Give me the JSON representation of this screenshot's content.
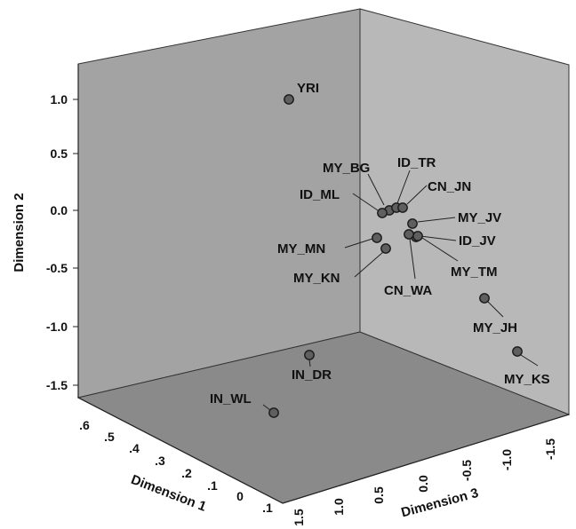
{
  "chart_data": {
    "type": "scatter",
    "title": "",
    "axes": {
      "dimension1": {
        "label": "Dimension 1",
        "ticks": [
          ".6",
          ".5",
          ".4",
          ".3",
          ".2",
          ".1",
          "0",
          ".1"
        ]
      },
      "dimension2": {
        "label": "Dimension 2",
        "ticks": [
          "1.0",
          "0.5",
          "0.0",
          "-0.5",
          "-1.0",
          "-1.5"
        ]
      },
      "dimension3": {
        "label": "Dimension 3",
        "ticks": [
          "1.5",
          "1.0",
          "0.5",
          "0.0",
          "-0.5",
          "-1.0",
          "-1.5"
        ]
      }
    },
    "points": [
      {
        "label": "YRI",
        "dim2": 0.97
      },
      {
        "label": "MY_BG",
        "dim2": -0.01
      },
      {
        "label": "ID_TR",
        "dim2": 0.02
      },
      {
        "label": "CN_JN",
        "dim2": 0.02
      },
      {
        "label": "ID_ML",
        "dim2": -0.01
      },
      {
        "label": "MY_JV",
        "dim2": -0.12
      },
      {
        "label": "ID_JV",
        "dim2": -0.2
      },
      {
        "label": "MY_MN",
        "dim2": -0.24
      },
      {
        "label": "MY_KN",
        "dim2": -0.33
      },
      {
        "label": "MY_TM",
        "dim2": -0.22
      },
      {
        "label": "CN_WA",
        "dim2": -0.21
      },
      {
        "label": "MY_JH",
        "dim2": -0.77
      },
      {
        "label": "MY_KS",
        "dim2": -1.22
      },
      {
        "label": "IN_DR",
        "dim2": -1.25
      },
      {
        "label": "IN_WL",
        "dim2": -1.75
      }
    ],
    "marker_color": "#5f5f5f",
    "wall_color": "#a3a3a3",
    "floor_color": "#8a8a8a"
  }
}
